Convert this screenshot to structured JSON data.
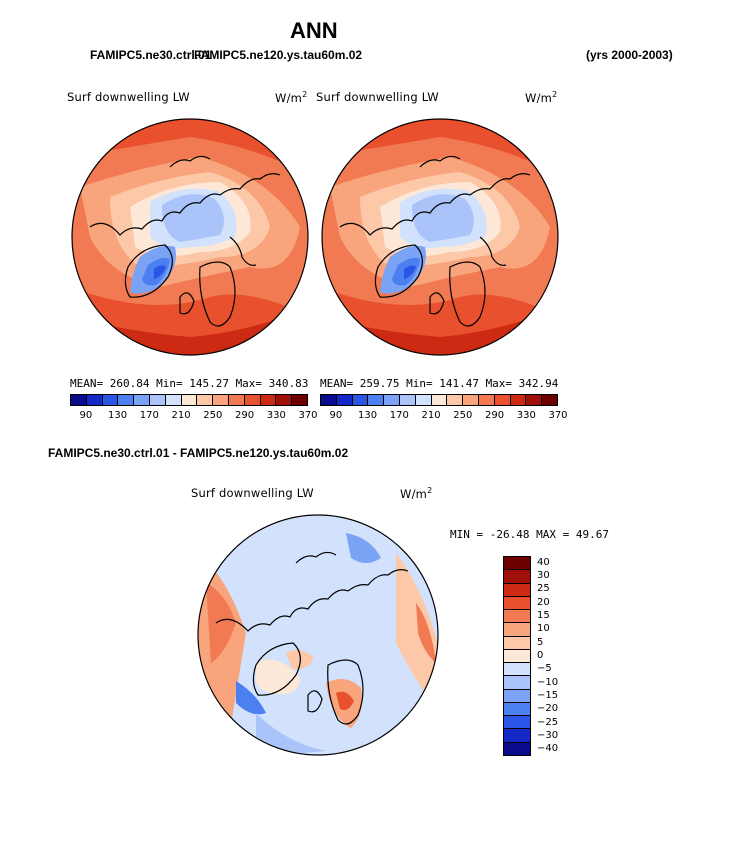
{
  "header": {
    "title": "ANN",
    "case_left": "FAMIPC5.ne30.ctrl.01",
    "case_right": "FAMIPC5.ne120.ys.tau60m.02",
    "years": "(yrs 2000-2003)"
  },
  "panel_left": {
    "variable": "Surf downwelling LW",
    "units": "W/m",
    "units_sup": "2",
    "stats": "MEAN= 260.84   Min= 145.27   Max= 340.83"
  },
  "panel_right": {
    "variable": "Surf downwelling LW",
    "units": "W/m",
    "units_sup": "2",
    "stats": "MEAN= 259.75   Min= 141.47   Max= 342.94"
  },
  "diff_panel": {
    "heading": "FAMIPC5.ne30.ctrl.01 - FAMIPC5.ne120.ys.tau60m.02",
    "variable": "Surf downwelling LW",
    "units": "W/m",
    "units_sup": "2",
    "minmax": "MIN = -26.48 MAX =  49.67"
  },
  "colorbar_top": {
    "colors": [
      "#0a0a8c",
      "#1428c8",
      "#2a55e6",
      "#4c80f0",
      "#7aa2f5",
      "#aac4fa",
      "#d2e2fc",
      "#fde8d8",
      "#fcc8a8",
      "#f8a47c",
      "#f27a52",
      "#e8502e",
      "#cc2a12",
      "#a01008",
      "#6e0000"
    ],
    "ticks": [
      "90",
      "130",
      "170",
      "210",
      "250",
      "290",
      "330",
      "370"
    ]
  },
  "colorbar_diff": {
    "colors": [
      "#6e0000",
      "#a01008",
      "#cc2a12",
      "#e8502e",
      "#f27a52",
      "#f8a47c",
      "#fcc8a8",
      "#fde8d8",
      "#d2e2fc",
      "#aac4fa",
      "#7aa2f5",
      "#4c80f0",
      "#2a55e6",
      "#1428c8",
      "#0a0a8c"
    ],
    "ticks": [
      "40",
      "30",
      "25",
      "20",
      "15",
      "10",
      "5",
      "0",
      "−5",
      "−10",
      "−15",
      "−20",
      "−25",
      "−30",
      "−40"
    ]
  }
}
